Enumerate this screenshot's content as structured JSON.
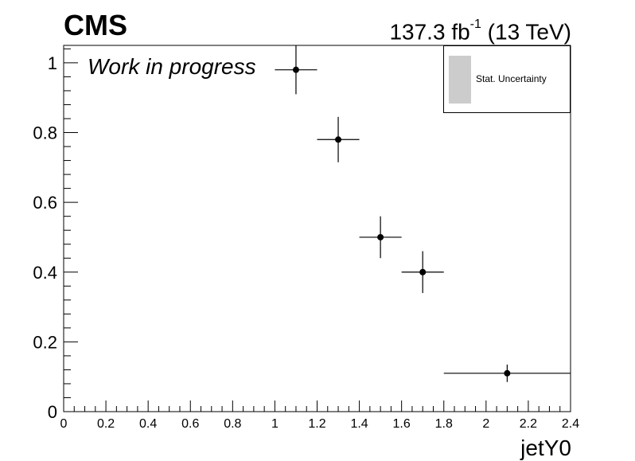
{
  "header": {
    "experiment": "CMS",
    "lumi_value": "137.3 fb",
    "lumi_exp": "-1",
    "lumi_energy": " (13 TeV)",
    "status": "Work in progress"
  },
  "legend": {
    "entry": "Stat. Uncertainty",
    "swatch_color": "#cccccc"
  },
  "chart_data": {
    "type": "scatter",
    "title": "",
    "xlabel": "jetY0",
    "ylabel": "",
    "xlim": [
      0,
      2.4
    ],
    "ylim": [
      0,
      1.05
    ],
    "x_ticks": [
      0,
      0.2,
      0.4,
      0.6,
      0.8,
      1,
      1.2,
      1.4,
      1.6,
      1.8,
      2,
      2.2,
      2.4
    ],
    "y_ticks": [
      0,
      0.2,
      0.4,
      0.6,
      0.8,
      1
    ],
    "grid": false,
    "legend_position": "top-right",
    "series": [
      {
        "points": [
          {
            "x": 1.1,
            "y": 0.98,
            "x_low": 1.0,
            "x_high": 1.2,
            "y_err": 0.07
          },
          {
            "x": 1.3,
            "y": 0.78,
            "x_low": 1.2,
            "x_high": 1.4,
            "y_err": 0.065
          },
          {
            "x": 1.5,
            "y": 0.5,
            "x_low": 1.4,
            "x_high": 1.6,
            "y_err": 0.06
          },
          {
            "x": 1.7,
            "y": 0.4,
            "x_low": 1.6,
            "x_high": 1.8,
            "y_err": 0.06
          },
          {
            "x": 2.1,
            "y": 0.11,
            "x_low": 1.8,
            "x_high": 2.4,
            "y_err": 0.025
          }
        ]
      }
    ]
  }
}
